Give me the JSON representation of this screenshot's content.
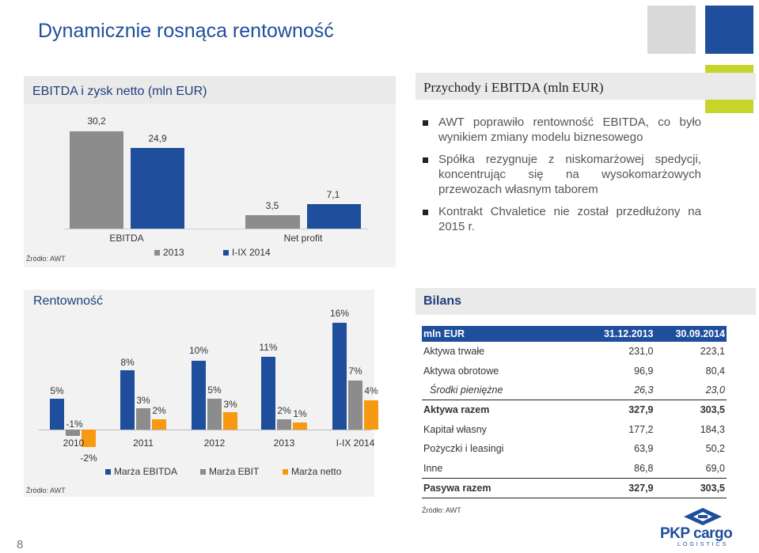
{
  "title": "Dynamicznie rosnąca rentowność",
  "colors": {
    "blue": "#1f4e9d",
    "gray": "#8c8c8c",
    "orange": "#f79a12",
    "lime": "#c7d42a",
    "lightgray": "#d9d9d9",
    "panel": "#f2f2f2"
  },
  "ebitda_panel": {
    "header": "EBITDA i zysk netto (mln EUR)",
    "source": "Źródło: AWT",
    "chart_data": {
      "type": "bar",
      "categories": [
        "EBITDA",
        "Net profit"
      ],
      "series": [
        {
          "name": "2013",
          "values": [
            30.2,
            3.5
          ],
          "labels": [
            "30,2",
            "3,5"
          ]
        },
        {
          "name": "I-IX 2014",
          "values": [
            24.9,
            7.1
          ],
          "labels": [
            "24,9",
            "7,1"
          ]
        }
      ]
    }
  },
  "revenue_panel": {
    "header": "Przychody i EBITDA (mln EUR)",
    "bullets": [
      "AWT poprawiło rentowność EBITDA, co było wynikiem zmiany modelu biznesowego",
      "Spółka rezygnuje z niskomarżowej spedycji, koncentrując się na wysokomarżowych przewozach własnym taborem",
      "Kontrakt Chvaletice nie został przedłużony na 2015 r."
    ]
  },
  "profit_panel": {
    "header": "Rentowność",
    "source": "Źródło: AWT",
    "chart_data": {
      "type": "bar",
      "categories": [
        "2010",
        "2011",
        "2012",
        "2013",
        "I-IX 2014"
      ],
      "series": [
        {
          "name": "Marża EBITDA",
          "values": [
            5,
            8,
            10,
            11,
            16
          ],
          "labels": [
            "5%",
            "8%",
            "10%",
            "11%",
            "16%"
          ]
        },
        {
          "name": "Marża EBIT",
          "values": [
            -1,
            3,
            5,
            2,
            7
          ],
          "labels": [
            "-1%",
            "3%",
            "5%",
            "2%",
            "7%"
          ]
        },
        {
          "name": "Marża netto",
          "values": [
            -2,
            2,
            3,
            1,
            4
          ],
          "labels": [
            "-2%",
            "2%",
            "3%",
            "1%",
            "4%"
          ]
        }
      ]
    }
  },
  "balance_panel": {
    "header": "Bilans",
    "source": "Źródło: AWT",
    "columns": [
      "mln EUR",
      "31.12.2013",
      "30.09.2014"
    ],
    "rows": [
      {
        "label": "Aktywa trwałe",
        "v1": "231,0",
        "v2": "223,1",
        "style": ""
      },
      {
        "label": "Aktywa obrotowe",
        "v1": "96,9",
        "v2": "80,4",
        "style": ""
      },
      {
        "label": "Środki pieniężne",
        "v1": "26,3",
        "v2": "23,0",
        "style": "it"
      },
      {
        "label": "Aktywa razem",
        "v1": "327,9",
        "v2": "303,5",
        "style": "bold"
      },
      {
        "label": "Kapitał własny",
        "v1": "177,2",
        "v2": "184,3",
        "style": ""
      },
      {
        "label": "Pożyczki i leasingi",
        "v1": "63,9",
        "v2": "50,2",
        "style": ""
      },
      {
        "label": "Inne",
        "v1": "86,8",
        "v2": "69,0",
        "style": ""
      },
      {
        "label": "Pasywa razem",
        "v1": "327,9",
        "v2": "303,5",
        "style": "bold last"
      }
    ]
  },
  "footer": {
    "page_number": "8",
    "logo_text": "PKP cargo",
    "logo_sub": "LOGISTICS"
  }
}
